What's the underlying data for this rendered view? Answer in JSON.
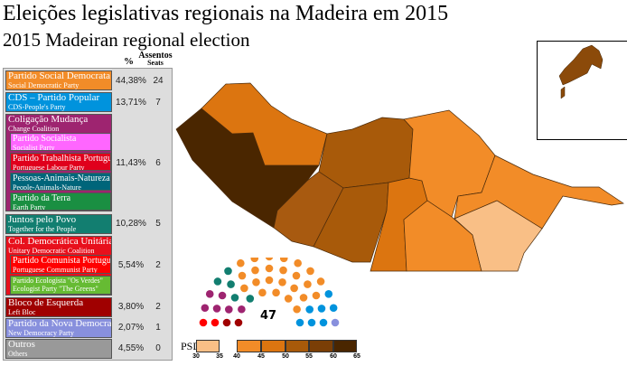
{
  "title": "Eleições legislativas regionais na Madeira em 2015",
  "subtitle": "2015 Madeiran regional election",
  "legend": {
    "pct_header": "%",
    "seats_header_pt": "Assentos",
    "seats_header_en": "Seats",
    "parties": [
      {
        "pt": "Partido Social Democrata",
        "en": "Social Democratic Party",
        "pct": "44,38%",
        "seats": "24",
        "color": "#f28c28"
      },
      {
        "pt": "CDS – Partido Popular",
        "en": "CDS-People's Party",
        "pct": "13,71%",
        "seats": "7",
        "color": "#0093dd"
      },
      {
        "pt": "Coligação Mudança",
        "en": "Change Coalition",
        "pct": "11,43%",
        "seats": "6",
        "color": "#9e2470",
        "members": [
          {
            "pt": "Partido Socialista",
            "en": "Socialist Party",
            "color": "#ff66ff"
          },
          {
            "pt": "Partido Trabalhista Português",
            "en": "Portuguese Labour Party",
            "color": "#e0001c"
          },
          {
            "pt": "Pessoas-Animais-Natureza",
            "en": "People-Animals-Nature",
            "color": "#00657a"
          },
          {
            "pt": "Partido da Terra",
            "en": "Earth Party",
            "color": "#1a8f42"
          }
        ]
      },
      {
        "pt": "Juntos pelo Povo",
        "en": "Together for the People",
        "pct": "10,28%",
        "seats": "5",
        "color": "#127e70"
      },
      {
        "pt": "Col. Democrática Unitária",
        "en": "Unitary Democratic Coalition",
        "pct": "5,54%",
        "seats": "2",
        "color": "#e8101c",
        "members": [
          {
            "pt": "Partido Comunista Português",
            "en": "Portuguese Communist Party",
            "color": "#ff0000"
          },
          {
            "pt": "Partido Ecologista \"Os Verdes\"",
            "en": "Ecologist Party \"The Greens\"",
            "color": "#66bb33"
          }
        ]
      },
      {
        "pt": "Bloco de Esquerda",
        "en": "Left Bloc",
        "pct": "3,80%",
        "seats": "2",
        "color": "#a00000"
      },
      {
        "pt": "Partido da Nova Democracia",
        "en": "New Democracy Party",
        "pct": "2,07%",
        "seats": "1",
        "color": "#8890dd"
      },
      {
        "pt": "Outros",
        "en": "Others",
        "pct": "4,55%",
        "seats": "0",
        "color": "#999999"
      }
    ]
  },
  "hemicycle": {
    "total": "47",
    "seat_order": [
      {
        "color": "#a00000",
        "n": 2
      },
      {
        "color": "#ff0000",
        "n": 2
      },
      {
        "color": "#9e2470",
        "n": 6
      },
      {
        "color": "#127e70",
        "n": 5
      },
      {
        "color": "#f28c28",
        "n": 24
      },
      {
        "color": "#0093dd",
        "n": 7
      },
      {
        "color": "#8890dd",
        "n": 1
      }
    ]
  },
  "scale": {
    "label": "PSD",
    "ticks": [
      "30",
      "35",
      "40",
      "45",
      "50",
      "55",
      "60",
      "65"
    ],
    "colors": [
      "#f9bf86",
      "#f28c28",
      "#dc7510",
      "#a85a0a",
      "#7a3e06",
      "#4a2600"
    ]
  },
  "map_colors": {
    "calheta": "#4a2600",
    "porto_moniz_sao_vicente": "#dc7510",
    "santana": "#f28c28",
    "inset": "#8b4a0a"
  }
}
